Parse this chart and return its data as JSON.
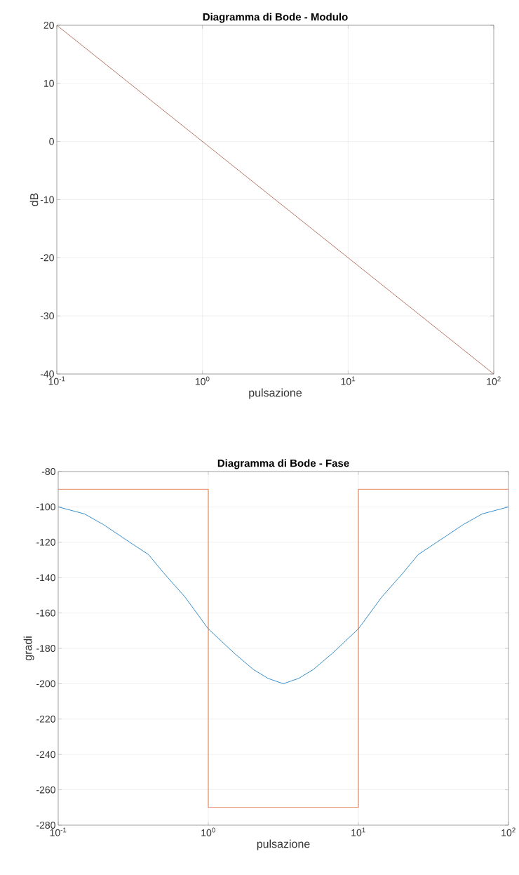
{
  "chart_data": [
    {
      "type": "line",
      "title": "Diagramma di Bode - Modulo",
      "xlabel": "pulsazione",
      "ylabel": "dB",
      "log": "x",
      "grid": true,
      "xlim": [
        0.1,
        100
      ],
      "ylim": [
        -40,
        20
      ],
      "xticks": [
        {
          "value": 0.1,
          "label": "10$^{-1}$"
        },
        {
          "value": 1,
          "label": "10$^{0}$"
        },
        {
          "value": 10,
          "label": "10$^{1}$"
        },
        {
          "value": 100,
          "label": "10$^{2}$"
        }
      ],
      "yticks": [
        -40,
        -30,
        -20,
        -10,
        0,
        10,
        20
      ],
      "series": [
        {
          "color": "#a4543a",
          "x": [
            0.1,
            100
          ],
          "values": [
            20,
            -40
          ]
        }
      ]
    },
    {
      "type": "line",
      "title": "Diagramma di Bode - Fase",
      "xlabel": "pulsazione",
      "ylabel": "gradi",
      "log": "x",
      "grid": true,
      "xlim": [
        0.1,
        100
      ],
      "ylim": [
        -280,
        -80
      ],
      "xticks": [
        {
          "value": 0.1,
          "label": "10$^{-1}$"
        },
        {
          "value": 1,
          "label": "10$^{0}$"
        },
        {
          "value": 10,
          "label": "10$^{1}$"
        },
        {
          "value": 100,
          "label": "10$^{2}$"
        }
      ],
      "yticks": [
        -280,
        -260,
        -240,
        -220,
        -200,
        -180,
        -160,
        -140,
        -120,
        -100,
        -80
      ],
      "series": [
        {
          "color": "#0072bd",
          "x": [
            0.1,
            0.15,
            0.2,
            0.3,
            0.4,
            0.5,
            0.7,
            1,
            1.5,
            2,
            2.5,
            3.16,
            4,
            5,
            6.67,
            10,
            14.3,
            20,
            25,
            33.3,
            50,
            66.7,
            100
          ],
          "values": [
            -100,
            -104,
            -110,
            -120,
            -127,
            -137,
            -151,
            -169,
            -183,
            -192,
            -197,
            -200,
            -197,
            -192,
            -183,
            -169,
            -151,
            -137,
            -127,
            -120,
            -110,
            -104,
            -100
          ]
        },
        {
          "color": "#d95319",
          "x": [
            0.1,
            1,
            1,
            10,
            10,
            100
          ],
          "values": [
            -90,
            -90,
            -270,
            -270,
            -90,
            -90
          ]
        }
      ]
    }
  ]
}
